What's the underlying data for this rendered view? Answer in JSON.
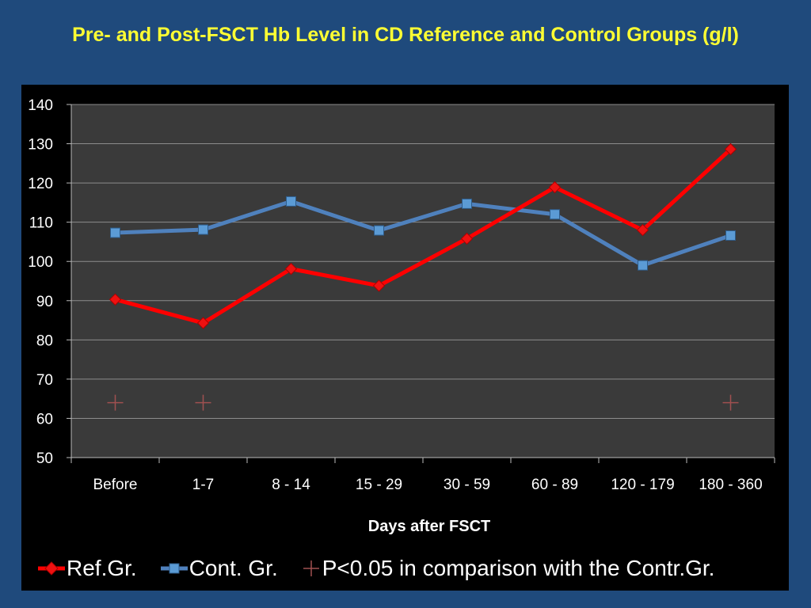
{
  "title": "Pre- and Post-FSCT Hb Level in CD Reference and Control Groups (g/l)",
  "colors": {
    "background": "#1f4a7c",
    "plot": "#3a3a3a",
    "title": "#ffff33",
    "ref": "#ff0000",
    "cont": "#4f81bd",
    "marker": "#a05050"
  },
  "chart_data": {
    "type": "line",
    "categories": [
      "Before",
      "1-7",
      "8 - 14",
      "15 - 29",
      "30 - 59",
      "60 - 89",
      "120 - 179",
      "180 - 360"
    ],
    "series": [
      {
        "name": "Ref.Gr.",
        "values": [
          90.3,
          84.3,
          98.1,
          93.8,
          105.8,
          118.9,
          108.0,
          128.6
        ]
      },
      {
        "name": "Cont. Gr.",
        "values": [
          107.3,
          108.1,
          115.3,
          107.9,
          114.7,
          112.0,
          99.0,
          106.6
        ]
      }
    ],
    "significance": {
      "name": "P<0.05 in comparison with the Contr.Gr.",
      "categories": [
        "Before",
        "1-7",
        "180 - 360"
      ],
      "value": 64
    },
    "title": "",
    "xlabel": "Days after FSCT",
    "ylabel": "",
    "ylim": [
      50,
      140
    ],
    "yticks": [
      50,
      60,
      70,
      80,
      90,
      100,
      110,
      120,
      130,
      140
    ],
    "grid": true,
    "legend": "bottom"
  }
}
